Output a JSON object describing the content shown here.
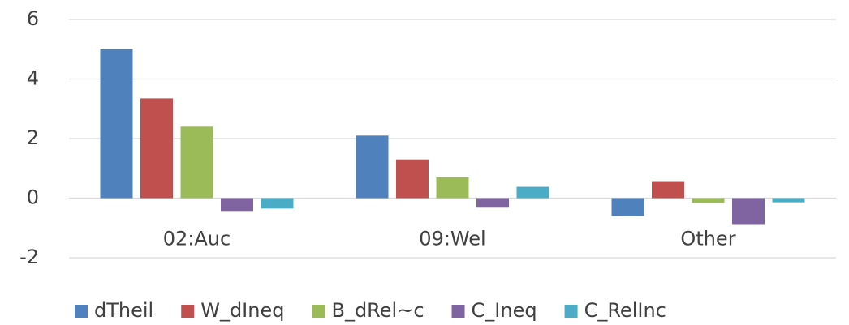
{
  "chart_data": {
    "type": "bar",
    "categories": [
      "02:Auc",
      "09:Wel",
      "Other"
    ],
    "series": [
      {
        "name": "dTheil",
        "color": "#4f81bd",
        "values": [
          5.0,
          2.1,
          -0.6
        ]
      },
      {
        "name": "W_dIneq",
        "color": "#c0504d",
        "values": [
          3.35,
          1.3,
          0.57
        ]
      },
      {
        "name": "B_dRel~c",
        "color": "#9bbb59",
        "values": [
          2.4,
          0.7,
          -0.16
        ]
      },
      {
        "name": "C_Ineq",
        "color": "#8064a2",
        "values": [
          -0.43,
          -0.32,
          -0.87
        ]
      },
      {
        "name": "C_RelInc",
        "color": "#4bacc6",
        "values": [
          -0.35,
          0.38,
          -0.14
        ]
      }
    ],
    "ylim": [
      -2,
      6
    ],
    "yticks": [
      -2,
      0,
      2,
      4,
      6
    ],
    "grid": true,
    "legend": "bottom"
  }
}
